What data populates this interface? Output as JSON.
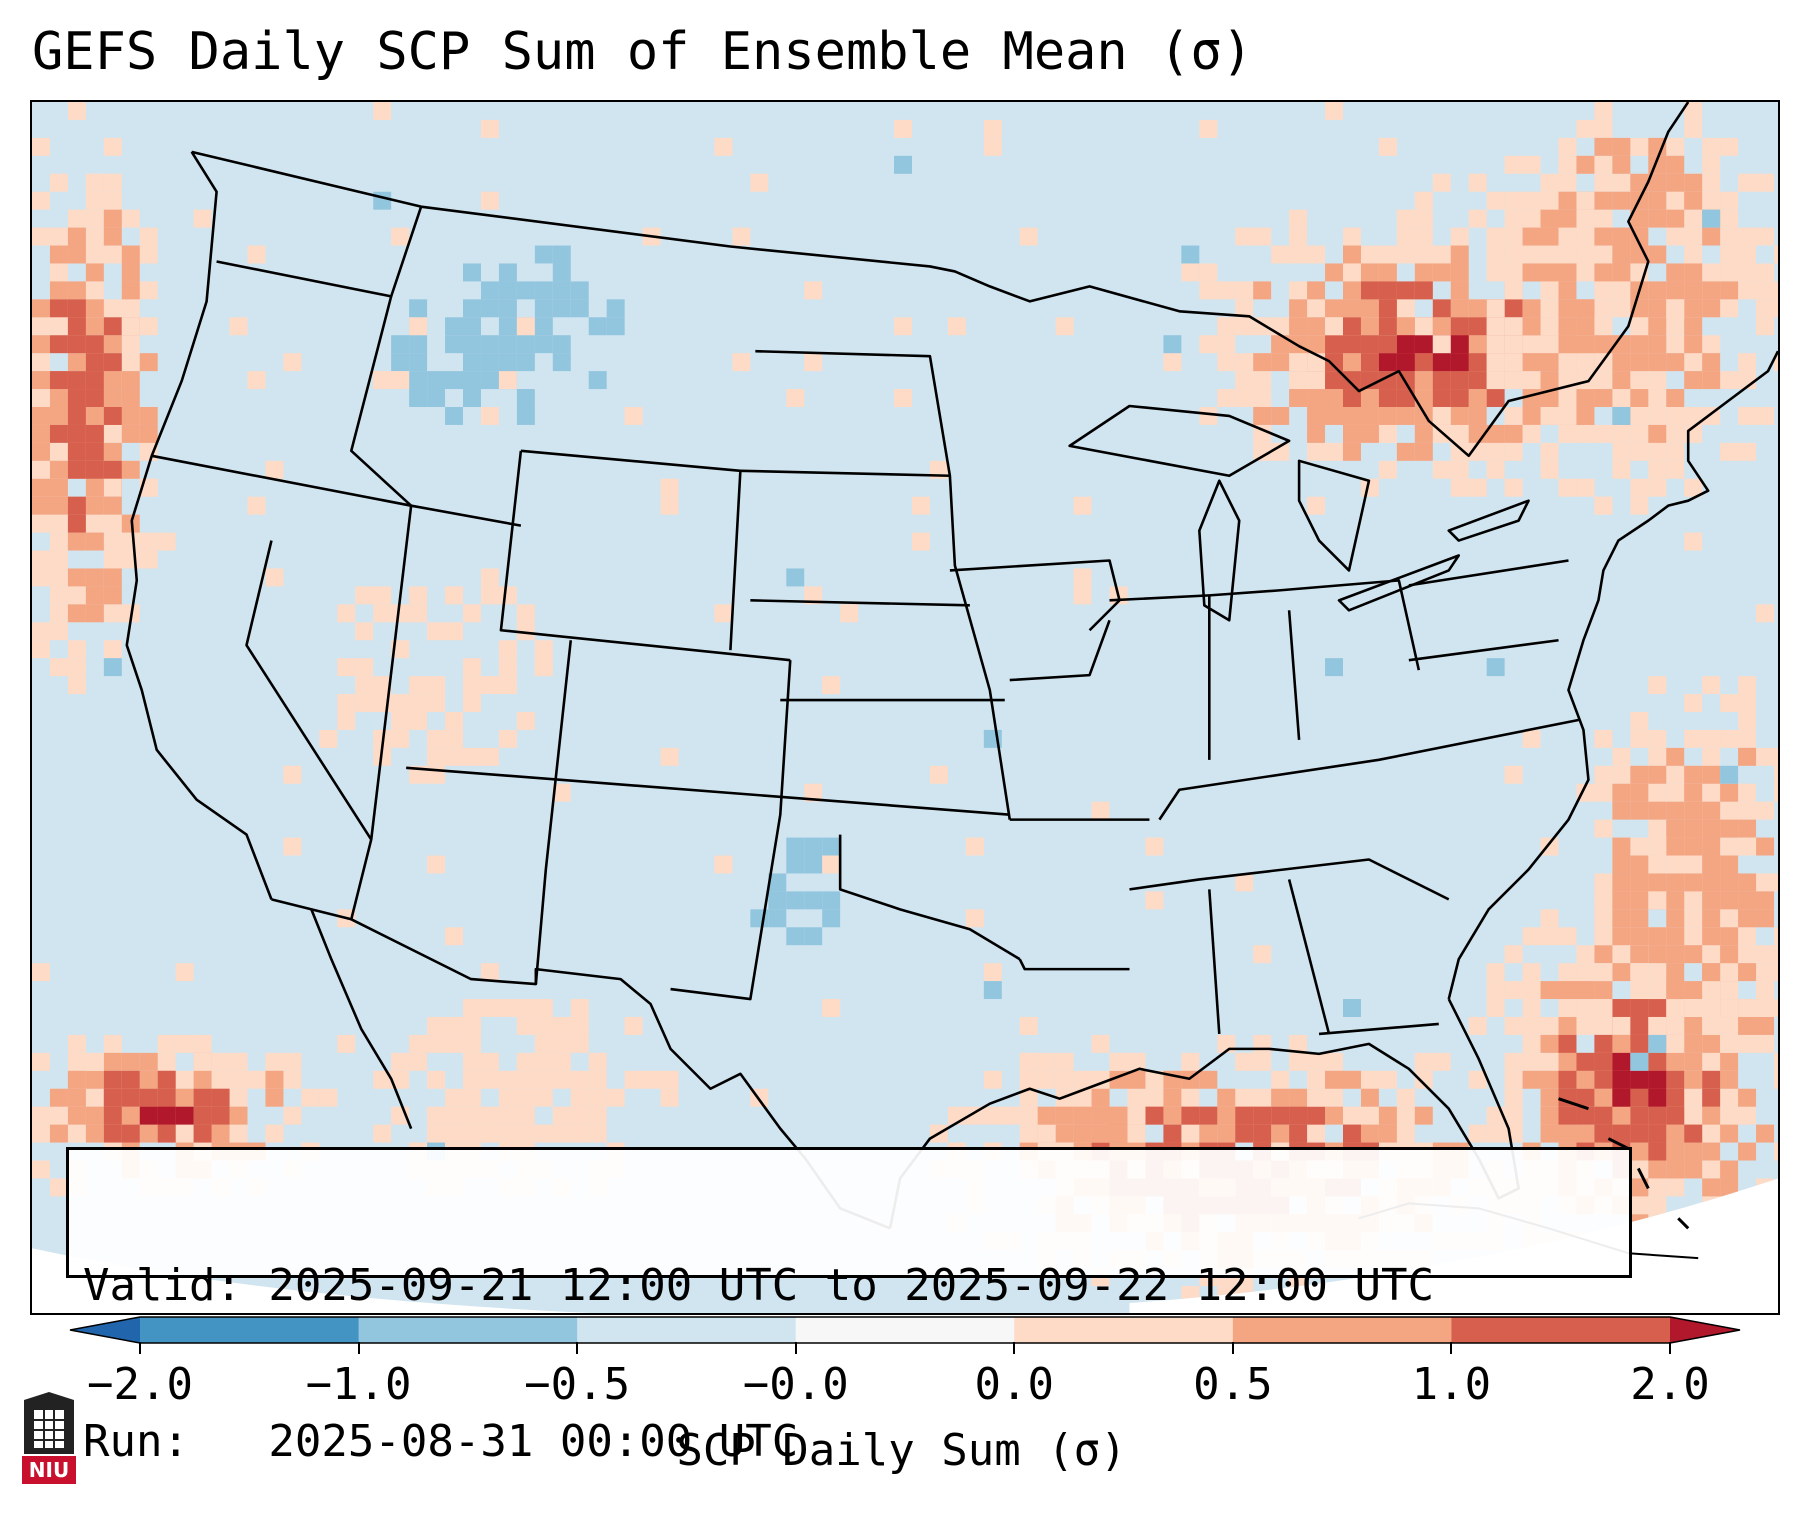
{
  "title": "GEFS Daily SCP Sum of Ensemble Mean (σ)",
  "info": {
    "valid_line": "Valid: 2025-09-21 12:00 UTC to 2025-09-22 12:00 UTC",
    "run_line": "Run:   2025-08-31 00:00 UTC"
  },
  "colorbar": {
    "label": "SCP Daily Sum (σ)",
    "ticks": [
      "−2.0",
      "−1.0",
      "−0.5",
      "−0.0",
      "0.0",
      "0.5",
      "1.0",
      "2.0"
    ],
    "bins": [
      {
        "range": "< -2.0",
        "color": "#2166ac"
      },
      {
        "range": "-2.0 to -1.0",
        "color": "#4393c3"
      },
      {
        "range": "-1.0 to -0.5",
        "color": "#92c5de"
      },
      {
        "range": "-0.5 to -0.0",
        "color": "#d1e5f0"
      },
      {
        "range": "-0.0 to 0.0",
        "color": "#f7f7f7"
      },
      {
        "range": "0.0 to 0.5",
        "color": "#fddbc7"
      },
      {
        "range": "0.5 to 1.0",
        "color": "#f4a582"
      },
      {
        "range": "1.0 to 2.0",
        "color": "#d6604d"
      },
      {
        "range": "> 2.0",
        "color": "#b2182b"
      }
    ]
  },
  "map": {
    "region": "Continental United States",
    "projection": "Lambert conformal",
    "background_color": "#d1e5f0",
    "anomaly_regions": [
      {
        "name": "Northern Great Lakes / Ontario",
        "level": "1.0 to 2.0"
      },
      {
        "name": "Gulf of Mexico",
        "level": "0.5 to 1.0"
      },
      {
        "name": "Western Atlantic near Bahamas",
        "level": "1.0 to 2.0"
      },
      {
        "name": "Eastern Pacific off Baja California",
        "level": "1.0 to 2.0"
      },
      {
        "name": "Pacific Northwest coastal waters",
        "level": "0.5 to 1.0"
      },
      {
        "name": "Northern Rockies",
        "level": "-1.0 to -0.5"
      },
      {
        "name": "Southern Plains / New Mexico",
        "level": "-1.0 to -0.5"
      }
    ]
  },
  "logo": {
    "text": "NIU"
  }
}
